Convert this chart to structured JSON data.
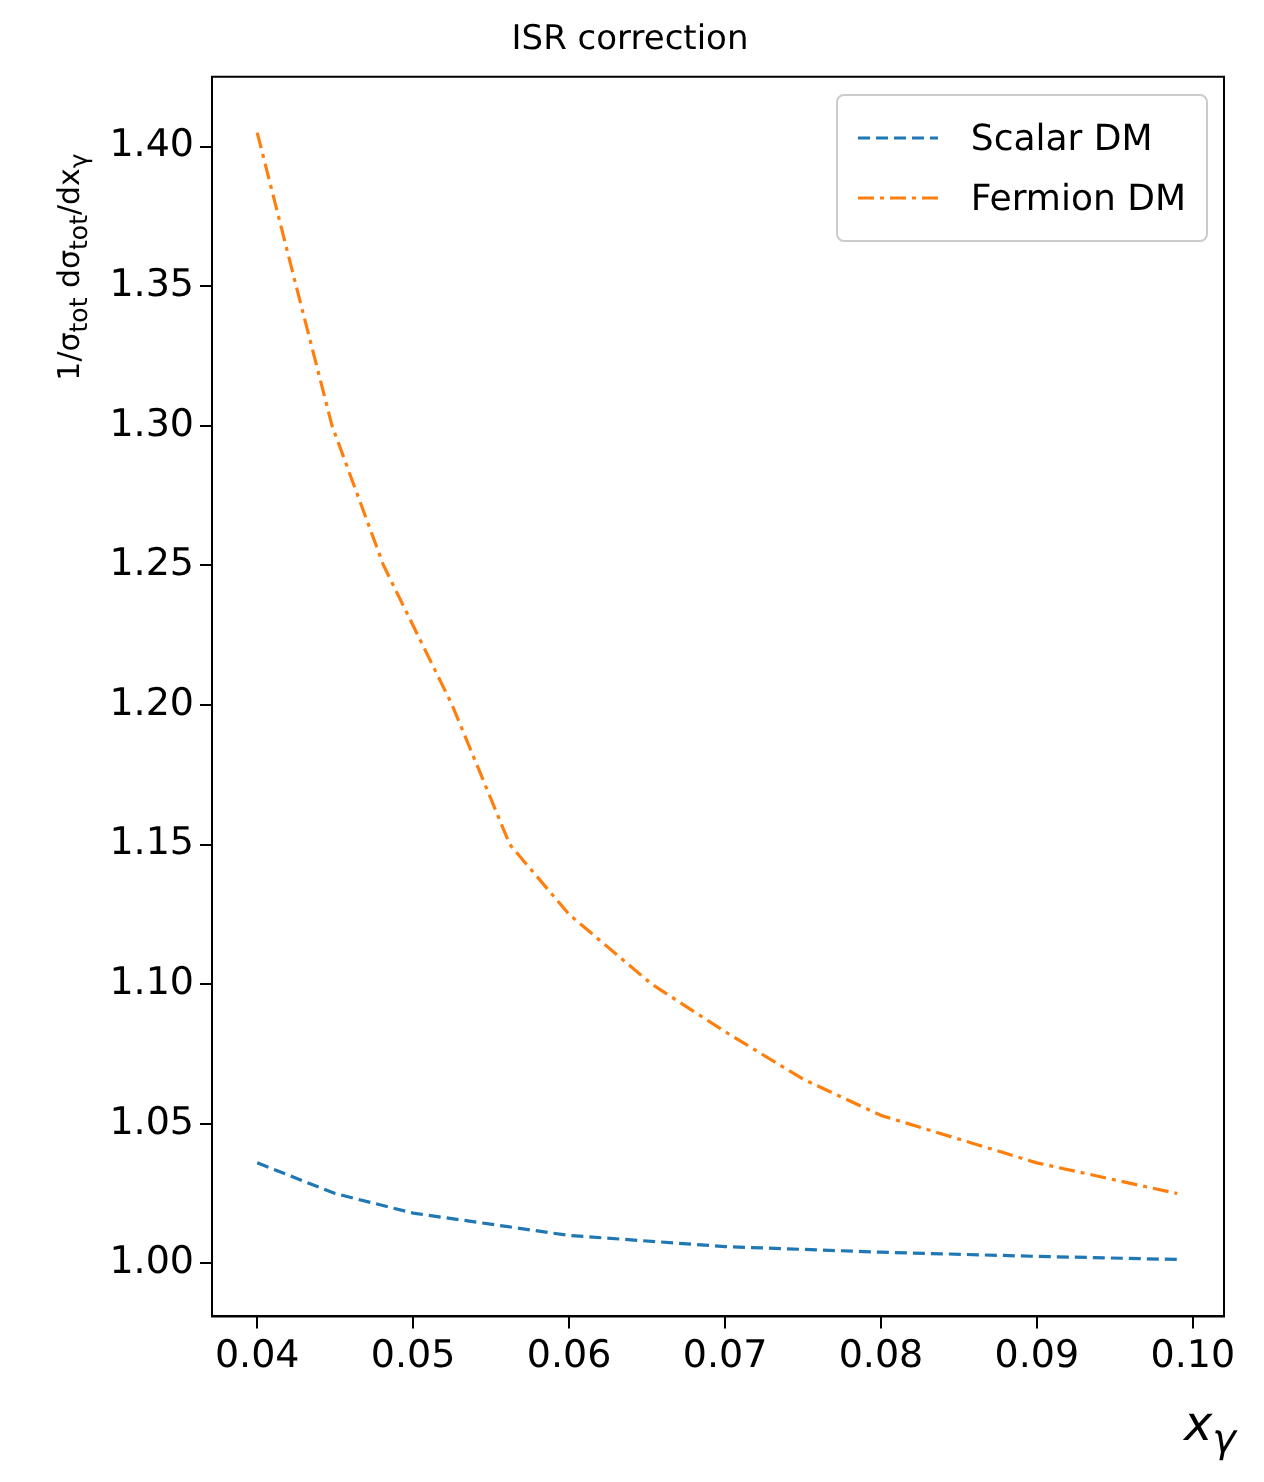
{
  "chart_data": {
    "type": "line",
    "title": "ISR correction",
    "xlabel": "x$_{γ}$",
    "ylabel": "1/σ$_{tot}$ dσ$_{tot}$/dx$_{γ}$",
    "xlim": [
      0.0371,
      0.102
    ],
    "xticks": [
      {
        "value": 0.04,
        "label": "0.04"
      },
      {
        "value": 0.05,
        "label": "0.05"
      },
      {
        "value": 0.06,
        "label": "0.06"
      },
      {
        "value": 0.07,
        "label": "0.07"
      },
      {
        "value": 0.08,
        "label": "0.08"
      },
      {
        "value": 0.09,
        "label": "0.09"
      },
      {
        "value": 0.1,
        "label": "0.10"
      }
    ],
    "ylim": [
      0.981,
      1.425
    ],
    "yticks": [
      {
        "value": 1,
        "label": "1.00"
      },
      {
        "value": 1.05,
        "label": "1.05"
      },
      {
        "value": 1.1,
        "label": "1.10"
      },
      {
        "value": 1.15,
        "label": "1.15"
      },
      {
        "value": 1.2,
        "label": "1.20"
      },
      {
        "value": 1.25,
        "label": "1.25"
      },
      {
        "value": 1.3,
        "label": "1.30"
      },
      {
        "value": 1.35,
        "label": "1.35"
      },
      {
        "value": 1.4,
        "label": "1.40"
      }
    ],
    "grid": false,
    "legend": "top right",
    "marker": "none",
    "series": [
      {
        "name": "Scalar DM",
        "color": "#1f77b4",
        "line_style": "dashed",
        "x": [
          0.04,
          0.045,
          0.05,
          0.06,
          0.07,
          0.08,
          0.09,
          0.099
        ],
        "values": [
          1.036,
          1.025,
          1.018,
          1.01,
          1.006,
          1.004,
          1.0025,
          1.0014
        ]
      },
      {
        "name": "Fermion DM",
        "color": "#ff7f0e",
        "line_style": "dashdot",
        "x": [
          0.04,
          0.0425,
          0.0448,
          0.0481,
          0.0525,
          0.0562,
          0.06,
          0.0653,
          0.07,
          0.075,
          0.08,
          0.09,
          0.099
        ],
        "values": [
          1.405,
          1.35,
          1.3,
          1.25,
          1.2,
          1.15,
          1.125,
          1.1,
          1.083,
          1.066,
          1.053,
          1.036,
          1.025
        ]
      }
    ]
  }
}
